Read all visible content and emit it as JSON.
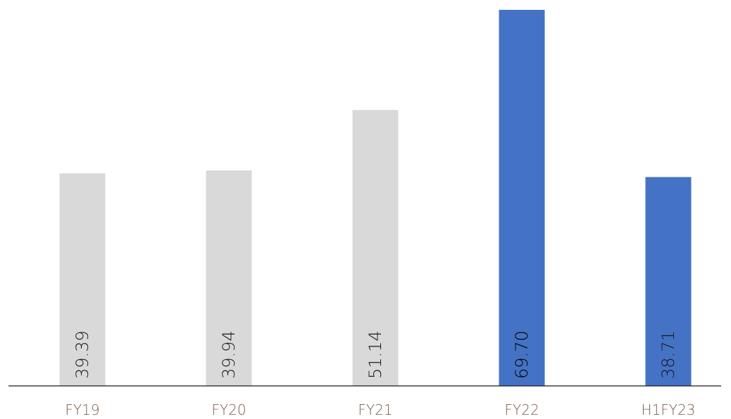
{
  "chart_data": {
    "type": "bar",
    "categories": [
      "FY19",
      "FY20",
      "FY21",
      "FY22",
      "H1FY23"
    ],
    "values": [
      39.39,
      39.94,
      51.14,
      69.7,
      38.71
    ],
    "value_labels": [
      "39.39",
      "39.94",
      "51.14",
      "69.70",
      "38.71"
    ],
    "bar_colors": [
      "#d9d9d9",
      "#d9d9d9",
      "#d9d9d9",
      "#4472c4",
      "#4472c4"
    ],
    "value_label_colors": [
      "#1a1a1a",
      "#1a1a1a",
      "#1a1a1a",
      "#000000",
      "#1a1a1a"
    ],
    "category_label_color": "#7b5d4d",
    "axis_color": "#1a1a1a",
    "title": "",
    "xlabel": "",
    "ylabel": "",
    "ylim": [
      0,
      69.7
    ],
    "grid": false,
    "legend": "none"
  }
}
